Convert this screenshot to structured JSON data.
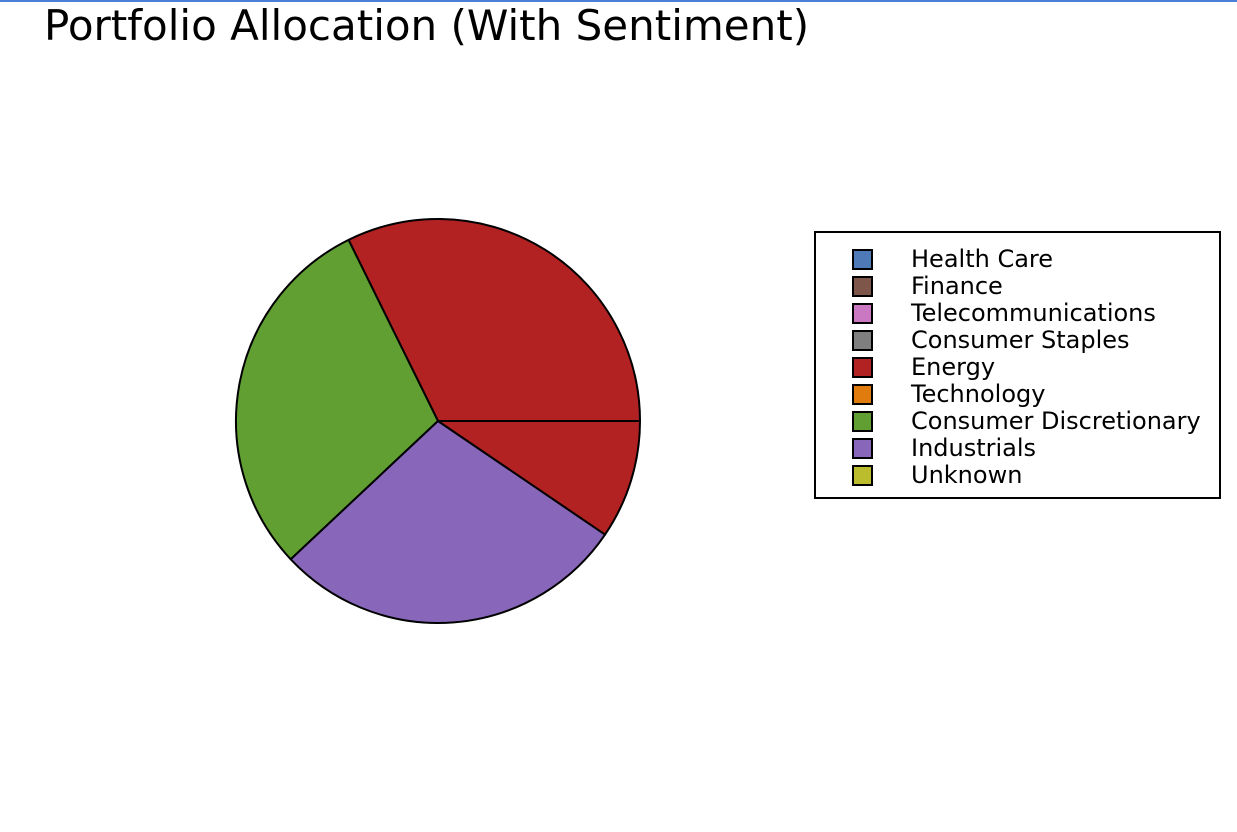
{
  "chart_data": {
    "type": "pie",
    "title": "Portfolio Allocation (With Sentiment)",
    "slices": [
      {
        "label": "Energy",
        "value": 32.3,
        "color": "#b22222"
      },
      {
        "label": "Consumer Discretionary",
        "value": 29.7,
        "color": "#629f33"
      },
      {
        "label": "Industrials",
        "value": 28.5,
        "color": "#8867bb"
      },
      {
        "label": "Energy",
        "value": 9.5,
        "color": "#b22222"
      }
    ],
    "legend": {
      "placement": "right",
      "entries": [
        {
          "label": "Health Care",
          "color": "#4e7ab8"
        },
        {
          "label": "Finance",
          "color": "#7e574a"
        },
        {
          "label": "Telecommunications",
          "color": "#ca78c2"
        },
        {
          "label": "Consumer Staples",
          "color": "#7f7f7f"
        },
        {
          "label": "Energy",
          "color": "#b22222"
        },
        {
          "label": "Technology",
          "color": "#e07b0e"
        },
        {
          "label": "Consumer Discretionary",
          "color": "#629f33"
        },
        {
          "label": "Industrials",
          "color": "#8867bb"
        },
        {
          "label": "Unknown",
          "color": "#bcbd2d"
        }
      ]
    }
  }
}
